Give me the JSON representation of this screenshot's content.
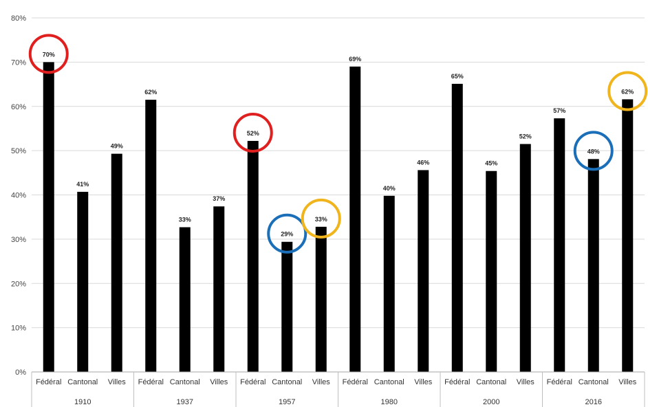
{
  "chart_data": {
    "type": "bar",
    "groups": [
      {
        "label": "1910",
        "bars": [
          {
            "category": "Fédéral",
            "value": 70,
            "label": "70%",
            "highlight": "#e0201f"
          },
          {
            "category": "Cantonal",
            "value": 40.7,
            "label": "41%",
            "highlight": null
          },
          {
            "category": "Villes",
            "value": 49.3,
            "label": "49%",
            "highlight": null
          }
        ]
      },
      {
        "label": "1937",
        "bars": [
          {
            "category": "Fédéral",
            "value": 61.5,
            "label": "62%",
            "highlight": null
          },
          {
            "category": "Cantonal",
            "value": 32.7,
            "label": "33%",
            "highlight": null
          },
          {
            "category": "Villes",
            "value": 37.4,
            "label": "37%",
            "highlight": null
          }
        ]
      },
      {
        "label": "1957",
        "bars": [
          {
            "category": "Fédéral",
            "value": 52.2,
            "label": "52%",
            "highlight": "#e0201f"
          },
          {
            "category": "Cantonal",
            "value": 29.4,
            "label": "29%",
            "highlight": "#1b6fb8"
          },
          {
            "category": "Villes",
            "value": 32.8,
            "label": "33%",
            "highlight": "#f0b41c"
          }
        ]
      },
      {
        "label": "1980",
        "bars": [
          {
            "category": "Fédéral",
            "value": 69,
            "label": "69%",
            "highlight": null
          },
          {
            "category": "Cantonal",
            "value": 39.8,
            "label": "40%",
            "highlight": null
          },
          {
            "category": "Villes",
            "value": 45.6,
            "label": "46%",
            "highlight": null
          }
        ]
      },
      {
        "label": "2000",
        "bars": [
          {
            "category": "Fédéral",
            "value": 65.1,
            "label": "65%",
            "highlight": null
          },
          {
            "category": "Cantonal",
            "value": 45.4,
            "label": "45%",
            "highlight": null
          },
          {
            "category": "Villes",
            "value": 51.5,
            "label": "52%",
            "highlight": null
          }
        ]
      },
      {
        "label": "2016",
        "bars": [
          {
            "category": "Fédéral",
            "value": 57.3,
            "label": "57%",
            "highlight": null
          },
          {
            "category": "Cantonal",
            "value": 48.1,
            "label": "48%",
            "highlight": "#1b6fb8"
          },
          {
            "category": "Villes",
            "value": 61.6,
            "label": "62%",
            "highlight": "#f0b41c"
          }
        ]
      }
    ],
    "y_ticks": [
      "0%",
      "10%",
      "20%",
      "30%",
      "40%",
      "50%",
      "60%",
      "70%",
      "80%"
    ],
    "ylim": [
      0,
      80
    ],
    "grid": true,
    "legend": "none",
    "bar_color": "#000000",
    "title": "",
    "xlabel": "",
    "ylabel": ""
  }
}
